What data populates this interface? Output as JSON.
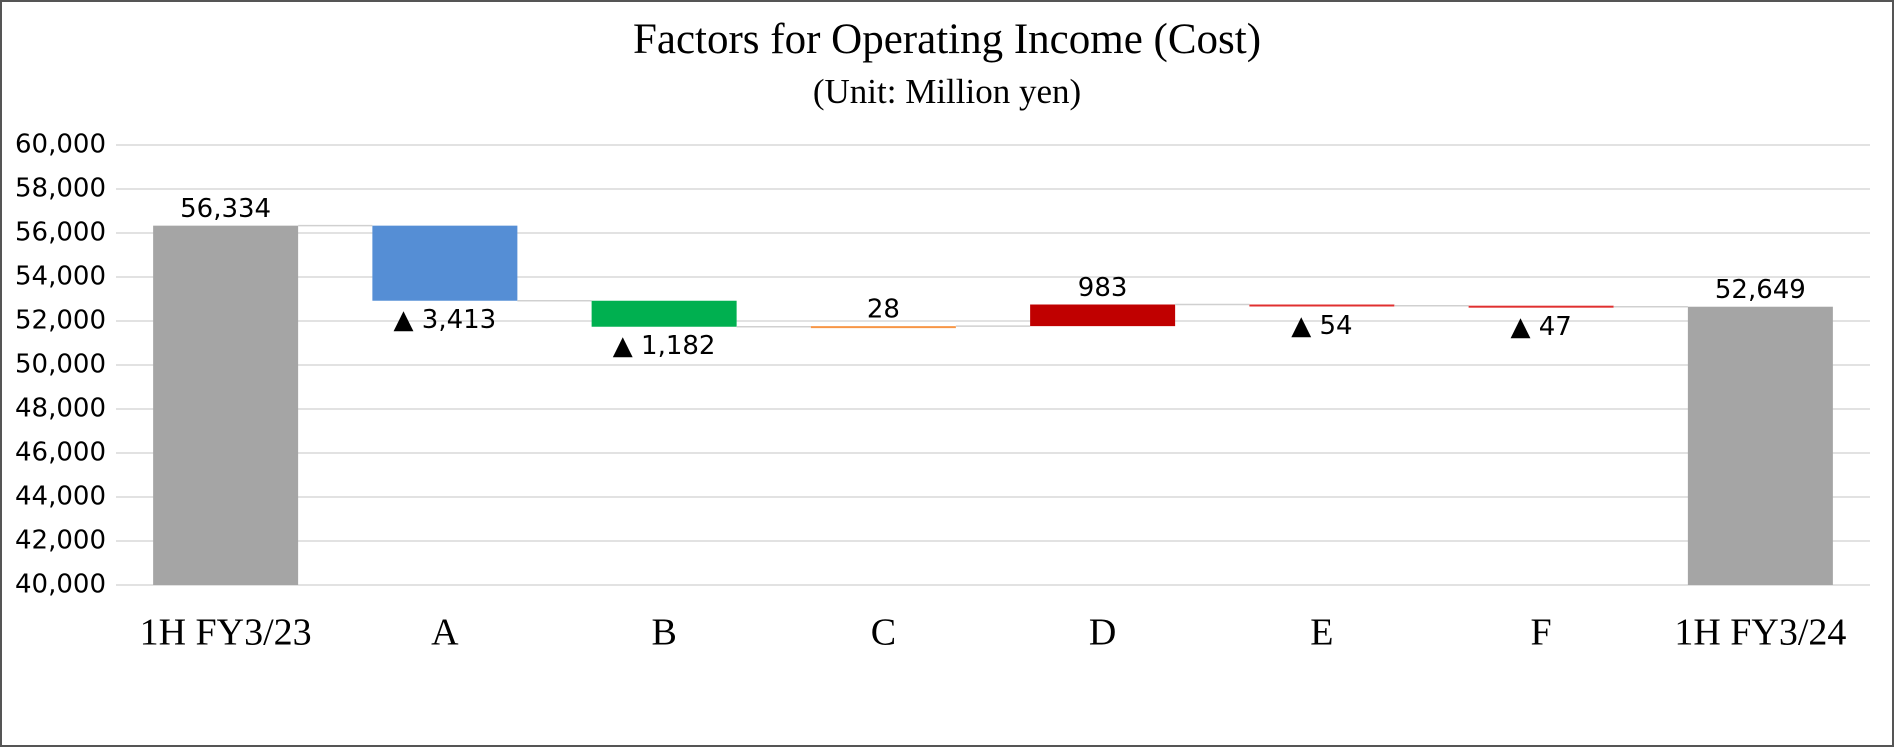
{
  "chart_data": {
    "type": "waterfall",
    "title": "Factors for Operating Income (Cost)",
    "subtitle": "(Unit: Million yen)",
    "categories": [
      "1H FY3/23",
      "A",
      "B",
      "C",
      "D",
      "E",
      "F",
      "1H FY3/24"
    ],
    "measure": [
      "total",
      "relative",
      "relative",
      "relative",
      "relative",
      "relative",
      "relative",
      "total"
    ],
    "values": [
      56334,
      -3413,
      -1182,
      28,
      983,
      -54,
      -47,
      52649
    ],
    "value_labels": [
      "56,334",
      "▲ 3,413",
      "▲ 1,182",
      "28",
      "983",
      "▲ 54",
      "▲ 47",
      "52,649"
    ],
    "colors": [
      "#a5a5a5",
      "#558ed5",
      "#00b050",
      "#f79646",
      "#c00000",
      "#e03030",
      "#e03030",
      "#a5a5a5"
    ],
    "ylim": [
      40000,
      60000
    ],
    "yticks": [
      {
        "value": 40000,
        "label": "40,000"
      },
      {
        "value": 42000,
        "label": "42,000"
      },
      {
        "value": 44000,
        "label": "44,000"
      },
      {
        "value": 46000,
        "label": "46,000"
      },
      {
        "value": 48000,
        "label": "48,000"
      },
      {
        "value": 50000,
        "label": "50,000"
      },
      {
        "value": 52000,
        "label": "52,000"
      },
      {
        "value": 54000,
        "label": "54,000"
      },
      {
        "value": 56000,
        "label": "56,000"
      },
      {
        "value": 58000,
        "label": "58,000"
      },
      {
        "value": 60000,
        "label": "60,000"
      }
    ],
    "grid": true
  }
}
